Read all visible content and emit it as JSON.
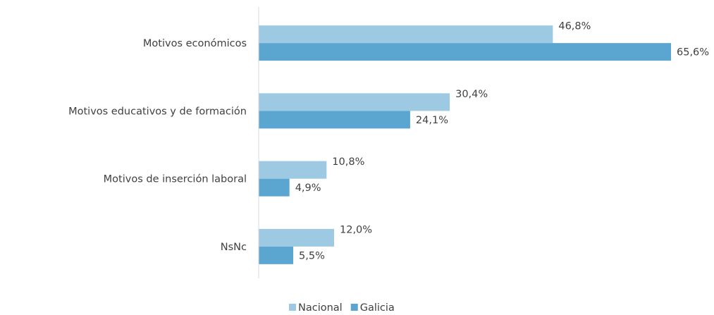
{
  "chart_data": {
    "type": "bar",
    "orientation": "horizontal",
    "categories": [
      "Motivos económicos",
      "Motivos educativos y de formación",
      "Motivos de inserción laboral",
      "NsNc"
    ],
    "series": [
      {
        "name": "Nacional",
        "color": "#9dc9e3",
        "values": [
          46.8,
          30.4,
          10.8,
          12.0
        ],
        "value_labels": [
          "46,8%",
          "30,4%",
          "10,8%",
          "12,0%"
        ]
      },
      {
        "name": "Galicia",
        "color": "#5ba6d0",
        "values": [
          65.6,
          24.1,
          4.9,
          5.5
        ],
        "value_labels": [
          "65,6%",
          "24,1%",
          "4,9%",
          "5,5%"
        ]
      }
    ],
    "legend": "bottom"
  }
}
